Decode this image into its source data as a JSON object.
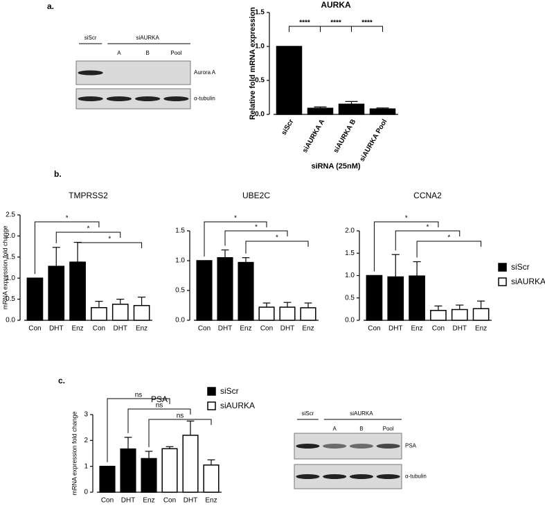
{
  "panels": {
    "a": "a.",
    "b": "b.",
    "c": "c."
  },
  "blots": [
    {
      "control": "siScr",
      "treatment": "siAURKA",
      "lanes": [
        "A",
        "B",
        "Pool"
      ],
      "bands": [
        "Aurora A",
        "α-tubulin"
      ]
    },
    {
      "control": "siScr",
      "treatment": "siAURKA",
      "lanes": [
        "A",
        "B",
        "Pool"
      ],
      "bands": [
        "PSA",
        "α-tubulin"
      ]
    }
  ],
  "chart_data": [
    {
      "type": "bar",
      "title": "AURKA",
      "y_label": "Relative fold mRNA expression",
      "x_label": "siRNA (25nM)",
      "categories": [
        "siScr",
        "siAURKA A",
        "siAURKA B",
        "siAURKA Pool"
      ],
      "series": [
        {
          "color": "#000000",
          "fill": "#000000",
          "values": [
            1.0,
            0.09,
            0.15,
            0.08
          ],
          "errors": [
            0,
            0.02,
            0.04,
            0.015
          ]
        }
      ],
      "ylim": [
        0,
        1.5
      ],
      "yticks": [
        {
          "value": 0,
          "label": "0.0"
        },
        {
          "value": 0.5,
          "label": "0.5"
        },
        {
          "value": 1,
          "label": "1.0"
        },
        {
          "value": 1.5,
          "label": "1.5"
        }
      ],
      "brackets": [
        {
          "from": 0,
          "to": 1,
          "label": "****"
        },
        {
          "from": 1,
          "to": 2,
          "label": "****"
        },
        {
          "from": 2,
          "to": 3,
          "label": "****"
        }
      ]
    },
    {
      "type": "bar",
      "title": "TMPRSS2",
      "y_label": "mRNA expression fold change",
      "categories": [
        "Con",
        "DHT",
        "Enz",
        "Con",
        "DHT",
        "Enz"
      ],
      "series": [
        {
          "color": "#000000",
          "fill": "#000000",
          "values": [
            1.0,
            1.28,
            1.38,
            null,
            null,
            null
          ],
          "errors": [
            0,
            0.45,
            0.47,
            null,
            null,
            null
          ]
        },
        {
          "color": "#000000",
          "fill": "#ffffff",
          "values": [
            null,
            null,
            null,
            0.3,
            0.38,
            0.35
          ],
          "errors": [
            null,
            null,
            null,
            0.15,
            0.12,
            0.2
          ]
        }
      ],
      "ylim": [
        0,
        2.5
      ],
      "yticks": [
        {
          "value": 0,
          "label": "0.0"
        },
        {
          "value": 0.5,
          "label": "0.5"
        },
        {
          "value": 1,
          "label": "1.0"
        },
        {
          "value": 1.5,
          "label": "1.5"
        },
        {
          "value": 2,
          "label": "2.0"
        },
        {
          "value": 2.5,
          "label": "2.5"
        }
      ],
      "brackets": [
        {
          "from": 0,
          "to": 3,
          "label": "*"
        },
        {
          "from": 1,
          "to": 4,
          "label": "*"
        },
        {
          "from": 2,
          "to": 5,
          "label": "*"
        }
      ]
    },
    {
      "type": "bar",
      "title": "UBE2C",
      "categories": [
        "Con",
        "DHT",
        "Enz",
        "Con",
        "DHT",
        "Enz"
      ],
      "series": [
        {
          "color": "#000000",
          "fill": "#000000",
          "values": [
            1.0,
            1.05,
            0.97,
            null,
            null,
            null
          ],
          "errors": [
            0,
            0.13,
            0.08,
            null,
            null,
            null
          ]
        },
        {
          "color": "#000000",
          "fill": "#ffffff",
          "values": [
            null,
            null,
            null,
            0.22,
            0.22,
            0.21
          ],
          "errors": [
            null,
            null,
            null,
            0.07,
            0.08,
            0.08
          ]
        }
      ],
      "ylim": [
        0,
        1.5
      ],
      "yticks": [
        {
          "value": 0,
          "label": "0.0"
        },
        {
          "value": 0.5,
          "label": "0.5"
        },
        {
          "value": 1,
          "label": "1.0"
        },
        {
          "value": 1.5,
          "label": "1.5"
        }
      ],
      "brackets": [
        {
          "from": 0,
          "to": 3,
          "label": "*"
        },
        {
          "from": 1,
          "to": 4,
          "label": "*"
        },
        {
          "from": 2,
          "to": 5,
          "label": "*"
        }
      ]
    },
    {
      "type": "bar",
      "title": "CCNA2",
      "categories": [
        "Con",
        "DHT",
        "Enz",
        "Con",
        "DHT",
        "Enz"
      ],
      "series": [
        {
          "name": "siScr",
          "color": "#000000",
          "fill": "#000000",
          "values": [
            1.0,
            0.97,
            0.99,
            null,
            null,
            null
          ],
          "errors": [
            0,
            0.5,
            0.32,
            null,
            null,
            null
          ]
        },
        {
          "name": "siAURKA",
          "color": "#000000",
          "fill": "#ffffff",
          "values": [
            null,
            null,
            null,
            0.22,
            0.24,
            0.26
          ],
          "errors": [
            null,
            null,
            null,
            0.1,
            0.1,
            0.17
          ]
        }
      ],
      "ylim": [
        0,
        2
      ],
      "yticks": [
        {
          "value": 0,
          "label": "0.0"
        },
        {
          "value": 0.5,
          "label": "0.5"
        },
        {
          "value": 1,
          "label": "1.0"
        },
        {
          "value": 1.5,
          "label": "1.5"
        },
        {
          "value": 2,
          "label": "2.0"
        }
      ],
      "brackets": [
        {
          "from": 0,
          "to": 3,
          "label": "*"
        },
        {
          "from": 1,
          "to": 4,
          "label": "*"
        },
        {
          "from": 2,
          "to": 5,
          "label": "*"
        }
      ]
    },
    {
      "type": "bar",
      "title": "PSA",
      "y_label": "mRNA expression fold change",
      "categories": [
        "Con",
        "DHT",
        "Enz",
        "Con",
        "DHT",
        "Enz"
      ],
      "series": [
        {
          "name": "siScr",
          "color": "#000000",
          "fill": "#000000",
          "values": [
            1.0,
            1.67,
            1.3,
            null,
            null,
            null
          ],
          "errors": [
            0,
            0.45,
            0.28,
            null,
            null,
            null
          ]
        },
        {
          "name": "siAURKA",
          "color": "#000000",
          "fill": "#ffffff",
          "values": [
            null,
            null,
            null,
            1.68,
            2.2,
            1.05
          ],
          "errors": [
            null,
            null,
            null,
            0.08,
            0.55,
            0.2
          ]
        }
      ],
      "ylim": [
        0,
        3
      ],
      "yticks": [
        0,
        1,
        2,
        3
      ],
      "brackets": [
        {
          "from": 0,
          "to": 3,
          "label": "ns"
        },
        {
          "from": 1,
          "to": 4,
          "label": "ns"
        },
        {
          "from": 2,
          "to": 5,
          "label": "ns"
        }
      ]
    }
  ]
}
